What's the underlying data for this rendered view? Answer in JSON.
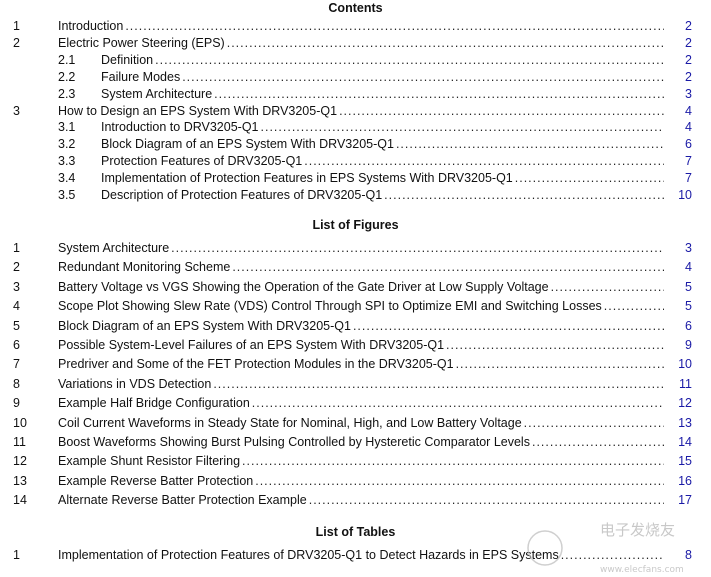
{
  "contents": {
    "heading": "Contents",
    "items": [
      {
        "num": "1",
        "title": "Introduction",
        "page": "2",
        "level": 1
      },
      {
        "num": "2",
        "title": "Electric Power Steering (EPS)",
        "page": "2",
        "level": 1
      },
      {
        "num": "2.1",
        "title": "Definition",
        "page": "2",
        "level": 2
      },
      {
        "num": "2.2",
        "title": "Failure Modes",
        "page": "2",
        "level": 2
      },
      {
        "num": "2.3",
        "title": "System Architecture",
        "page": "3",
        "level": 2
      },
      {
        "num": "3",
        "title": "How to Design an EPS System With DRV3205-Q1",
        "page": "4",
        "level": 1
      },
      {
        "num": "3.1",
        "title": "Introduction to DRV3205-Q1",
        "page": "4",
        "level": 2
      },
      {
        "num": "3.2",
        "title": "Block Diagram of an EPS System With DRV3205-Q1",
        "page": "6",
        "level": 2
      },
      {
        "num": "3.3",
        "title": "Protection Features of DRV3205-Q1",
        "page": "7",
        "level": 2
      },
      {
        "num": "3.4",
        "title": "Implementation of Protection Features in EPS Systems With DRV3205-Q1",
        "page": "7",
        "level": 2
      },
      {
        "num": "3.5",
        "title": "Description of Protection Features of DRV3205-Q1",
        "page": "10",
        "level": 2
      }
    ]
  },
  "figures": {
    "heading": "List of Figures",
    "items": [
      {
        "num": "1",
        "title": "System Architecture",
        "page": "3"
      },
      {
        "num": "2",
        "title": "Redundant Monitoring Scheme",
        "page": "4"
      },
      {
        "num": "3",
        "title": "Battery Voltage vs VGS Showing the Operation of the Gate Driver at Low Supply Voltage",
        "page": "5"
      },
      {
        "num": "4",
        "title": "Scope Plot Showing Slew Rate (VDS) Control Through SPI to Optimize EMI and Switching Losses",
        "page": "5"
      },
      {
        "num": "5",
        "title": "Block Diagram of an EPS System With DRV3205-Q1",
        "page": "6"
      },
      {
        "num": "6",
        "title": "Possible System-Level Failures of an EPS System With DRV3205-Q1",
        "page": "9"
      },
      {
        "num": "7",
        "title": "Predriver and Some of the FET Protection Modules in the DRV3205-Q1",
        "page": "10"
      },
      {
        "num": "8",
        "title": "Variations in VDS Detection",
        "page": "11"
      },
      {
        "num": "9",
        "title": "Example Half Bridge Configuration",
        "page": "12"
      },
      {
        "num": "10",
        "title": "Coil Current Waveforms in Steady State for Nominal, High, and Low Battery Voltage",
        "page": "13"
      },
      {
        "num": "11",
        "title": "Boost Waveforms Showing Burst Pulsing Controlled by Hysteretic Comparator Levels",
        "page": "14"
      },
      {
        "num": "12",
        "title": "Example Shunt Resistor Filtering",
        "page": "15"
      },
      {
        "num": "13",
        "title": "Example Reverse Batter Protection",
        "page": "16"
      },
      {
        "num": "14",
        "title": "Alternate Reverse Batter Protection Example",
        "page": "17"
      }
    ]
  },
  "tables": {
    "heading": "List of Tables",
    "items": [
      {
        "num": "1",
        "title": "Implementation of Protection Features of DRV3205-Q1 to Detect Hazards in EPS Systems",
        "page": "8"
      }
    ]
  },
  "watermark": {
    "brand": "电子发烧友",
    "url": "www.elecfans.com"
  }
}
